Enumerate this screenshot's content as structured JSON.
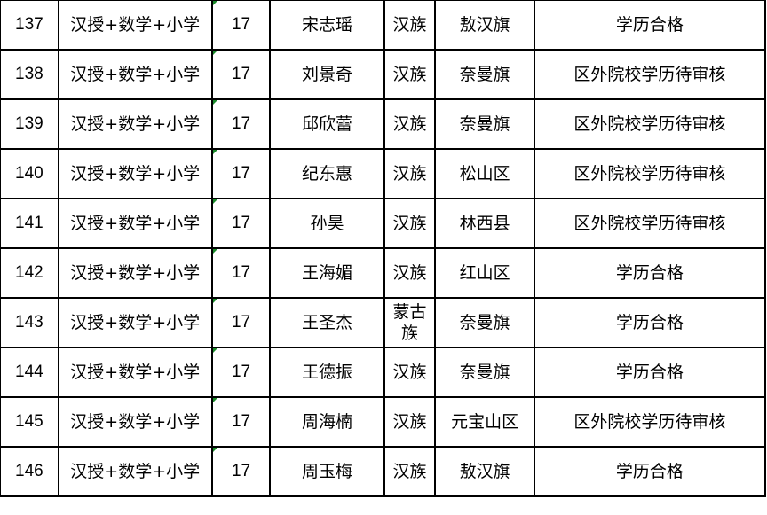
{
  "rows": [
    {
      "no": "137",
      "subject": "汉授+数学+小学",
      "count": "17",
      "name": "宋志瑶",
      "ethnicity": "汉族",
      "region": "敖汉旗",
      "status": "学历合格"
    },
    {
      "no": "138",
      "subject": "汉授+数学+小学",
      "count": "17",
      "name": "刘景奇",
      "ethnicity": "汉族",
      "region": "奈曼旗",
      "status": "区外院校学历待审核"
    },
    {
      "no": "139",
      "subject": "汉授+数学+小学",
      "count": "17",
      "name": "邱欣蕾",
      "ethnicity": "汉族",
      "region": "奈曼旗",
      "status": "区外院校学历待审核"
    },
    {
      "no": "140",
      "subject": "汉授+数学+小学",
      "count": "17",
      "name": "纪东惠",
      "ethnicity": "汉族",
      "region": "松山区",
      "status": "区外院校学历待审核"
    },
    {
      "no": "141",
      "subject": "汉授+数学+小学",
      "count": "17",
      "name": "孙昊",
      "ethnicity": "汉族",
      "region": "林西县",
      "status": "区外院校学历待审核"
    },
    {
      "no": "142",
      "subject": "汉授+数学+小学",
      "count": "17",
      "name": "王海媚",
      "ethnicity": "汉族",
      "region": "红山区",
      "status": "学历合格"
    },
    {
      "no": "143",
      "subject": "汉授+数学+小学",
      "count": "17",
      "name": "王圣杰",
      "ethnicity": "蒙古族",
      "region": "奈曼旗",
      "status": "学历合格"
    },
    {
      "no": "144",
      "subject": "汉授+数学+小学",
      "count": "17",
      "name": "王德振",
      "ethnicity": "汉族",
      "region": "奈曼旗",
      "status": "学历合格"
    },
    {
      "no": "145",
      "subject": "汉授+数学+小学",
      "count": "17",
      "name": "周海楠",
      "ethnicity": "汉族",
      "region": "元宝山区",
      "status": "区外院校学历待审核"
    },
    {
      "no": "146",
      "subject": "汉授+数学+小学",
      "count": "17",
      "name": "周玉梅",
      "ethnicity": "汉族",
      "region": "敖汉旗",
      "status": "学历合格"
    }
  ],
  "colors": {
    "border": "#000000",
    "cell_marker": "#1a8a2a"
  }
}
